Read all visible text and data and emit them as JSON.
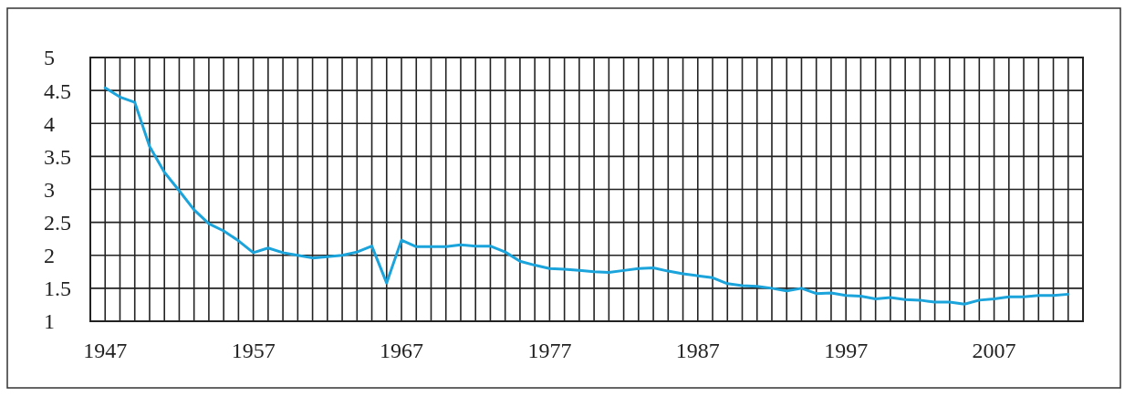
{
  "chart_data": {
    "type": "line",
    "x": [
      1947,
      1948,
      1949,
      1950,
      1951,
      1952,
      1953,
      1954,
      1955,
      1956,
      1957,
      1958,
      1959,
      1960,
      1961,
      1962,
      1963,
      1964,
      1965,
      1966,
      1967,
      1968,
      1969,
      1970,
      1971,
      1972,
      1973,
      1974,
      1975,
      1976,
      1977,
      1978,
      1979,
      1980,
      1981,
      1982,
      1983,
      1984,
      1985,
      1986,
      1987,
      1988,
      1989,
      1990,
      1991,
      1992,
      1993,
      1994,
      1995,
      1996,
      1997,
      1998,
      1999,
      2000,
      2001,
      2002,
      2003,
      2004,
      2005,
      2006,
      2007,
      2008,
      2009,
      2010,
      2011,
      2012
    ],
    "series": [
      {
        "color": "#1ba3db",
        "values": [
          4.54,
          4.4,
          4.32,
          3.65,
          3.26,
          2.98,
          2.69,
          2.48,
          2.37,
          2.22,
          2.04,
          2.11,
          2.04,
          2.0,
          1.96,
          1.98,
          2.0,
          2.05,
          2.14,
          1.58,
          2.23,
          2.13,
          2.13,
          2.13,
          2.16,
          2.14,
          2.14,
          2.05,
          1.91,
          1.85,
          1.8,
          1.79,
          1.77,
          1.75,
          1.74,
          1.77,
          1.8,
          1.81,
          1.76,
          1.72,
          1.69,
          1.66,
          1.57,
          1.54,
          1.53,
          1.5,
          1.46,
          1.5,
          1.42,
          1.43,
          1.39,
          1.38,
          1.34,
          1.36,
          1.33,
          1.32,
          1.29,
          1.29,
          1.26,
          1.32,
          1.34,
          1.37,
          1.37,
          1.39,
          1.39,
          1.41
        ]
      }
    ],
    "xlim": [
      1946,
      2013
    ],
    "xticks": [
      1947,
      {
        "value": 1948,
        "label": null
      },
      {
        "value": 1949,
        "label": null
      },
      {
        "value": 1950,
        "label": null
      },
      {
        "value": 1951,
        "label": null
      },
      {
        "value": 1952,
        "label": null
      },
      {
        "value": 1953,
        "label": null
      },
      {
        "value": 1954,
        "label": null
      },
      {
        "value": 1955,
        "label": null
      },
      {
        "value": 1956,
        "label": null
      },
      1957,
      {
        "value": 1958,
        "label": null
      },
      {
        "value": 1959,
        "label": null
      },
      {
        "value": 1960,
        "label": null
      },
      {
        "value": 1961,
        "label": null
      },
      {
        "value": 1962,
        "label": null
      },
      {
        "value": 1963,
        "label": null
      },
      {
        "value": 1964,
        "label": null
      },
      {
        "value": 1965,
        "label": null
      },
      {
        "value": 1966,
        "label": null
      },
      1967,
      {
        "value": 1968,
        "label": null
      },
      {
        "value": 1969,
        "label": null
      },
      {
        "value": 1970,
        "label": null
      },
      {
        "value": 1971,
        "label": null
      },
      {
        "value": 1972,
        "label": null
      },
      {
        "value": 1973,
        "label": null
      },
      {
        "value": 1974,
        "label": null
      },
      {
        "value": 1975,
        "label": null
      },
      {
        "value": 1976,
        "label": null
      },
      1977,
      {
        "value": 1978,
        "label": null
      },
      {
        "value": 1979,
        "label": null
      },
      {
        "value": 1980,
        "label": null
      },
      {
        "value": 1981,
        "label": null
      },
      {
        "value": 1982,
        "label": null
      },
      {
        "value": 1983,
        "label": null
      },
      {
        "value": 1984,
        "label": null
      },
      {
        "value": 1985,
        "label": null
      },
      {
        "value": 1986,
        "label": null
      },
      1987,
      {
        "value": 1988,
        "label": null
      },
      {
        "value": 1989,
        "label": null
      },
      {
        "value": 1990,
        "label": null
      },
      {
        "value": 1991,
        "label": null
      },
      {
        "value": 1992,
        "label": null
      },
      {
        "value": 1993,
        "label": null
      },
      {
        "value": 1994,
        "label": null
      },
      {
        "value": 1995,
        "label": null
      },
      {
        "value": 1996,
        "label": null
      },
      1997,
      {
        "value": 1998,
        "label": null
      },
      {
        "value": 1999,
        "label": null
      },
      {
        "value": 2000,
        "label": null
      },
      {
        "value": 2001,
        "label": null
      },
      {
        "value": 2002,
        "label": null
      },
      {
        "value": 2003,
        "label": null
      },
      {
        "value": 2004,
        "label": null
      },
      {
        "value": 2005,
        "label": null
      },
      {
        "value": 2006,
        "label": null
      },
      2007,
      {
        "value": 2008,
        "label": null
      },
      {
        "value": 2009,
        "label": null
      },
      {
        "value": 2010,
        "label": null
      },
      {
        "value": 2011,
        "label": null
      },
      {
        "value": 2012,
        "label": null
      }
    ],
    "ylim": [
      1,
      5
    ],
    "yticks": [
      1,
      1.5,
      2,
      2.5,
      3,
      3.5,
      4,
      4.5,
      5
    ],
    "grid": true,
    "marker": "none",
    "line_style": "solid"
  }
}
